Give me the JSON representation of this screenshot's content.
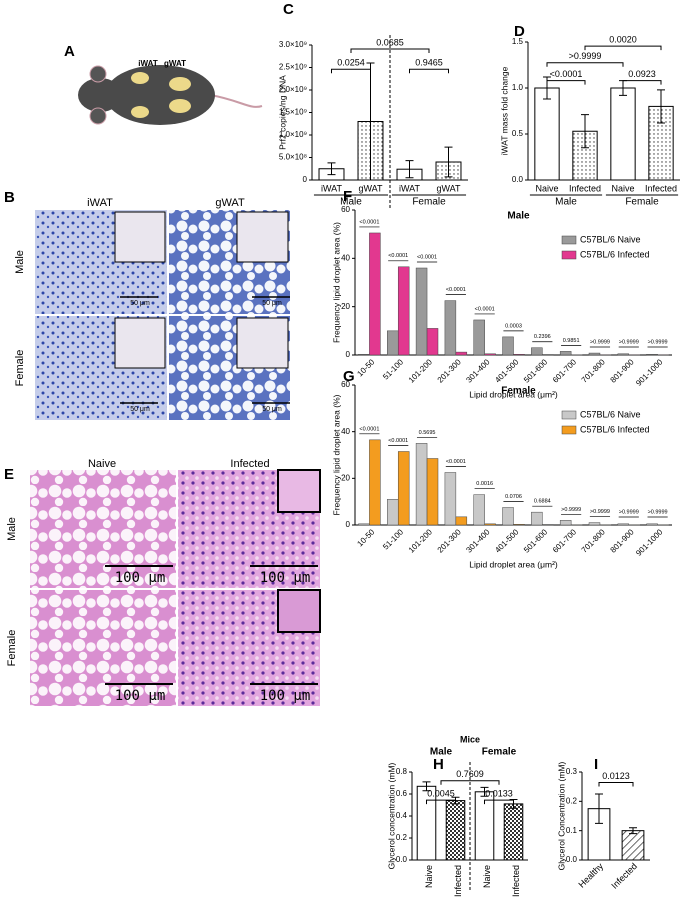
{
  "figure": {
    "panel_letters": [
      "A",
      "B",
      "C",
      "D",
      "E",
      "F",
      "G",
      "H",
      "I"
    ],
    "mouse_labels": [
      "iWAT",
      "gWAT"
    ],
    "b": {
      "columns": [
        "iWAT",
        "gWAT"
      ],
      "rows": [
        "Male",
        "Female"
      ],
      "scale_bars": [
        "50 μm",
        "50 μm",
        "50 μm",
        "50 μm"
      ]
    },
    "e": {
      "columns": [
        "Naive",
        "Infected"
      ],
      "rows": [
        "Male",
        "Female"
      ],
      "scale_bars": [
        "100 μm",
        "100 μm",
        "100 μm",
        "100 μm"
      ]
    }
  },
  "chart_data": [
    {
      "type": "bar",
      "ylabel": "Prf2 copies/ng DNA",
      "categories": [
        "iWAT",
        "gWAT",
        "iWAT",
        "gWAT"
      ],
      "groups": [
        "Male",
        "Female"
      ],
      "values": [
        250000000,
        1300000000,
        240000000,
        400000000
      ],
      "errors": [
        130000000,
        1300000000,
        190000000,
        330000000
      ],
      "patterns": [
        "none",
        "dots",
        "none",
        "dots"
      ],
      "ylim": [
        0,
        3000000000
      ],
      "yticks": [
        0,
        {
          "value": 500000000,
          "label": "5.0×10⁸"
        },
        {
          "value": 1000000000,
          "label": "1.0×10⁹"
        },
        {
          "value": 1500000000,
          "label": "1.5×10⁹"
        },
        {
          "value": 2000000000,
          "label": "2.0×10⁹"
        },
        {
          "value": 2500000000,
          "label": "2.5×10⁹"
        },
        {
          "value": 3000000000,
          "label": "3.0×10⁹"
        }
      ],
      "comparisons": [
        "0.0254",
        "0.9465",
        "0.0685"
      ],
      "divider": true
    },
    {
      "type": "bar",
      "ylabel": "iWAT mass fold change",
      "categories": [
        "Naive",
        "Infected",
        "Naive",
        "Infected"
      ],
      "groups": [
        "Male",
        "Female"
      ],
      "values": [
        1.0,
        0.53,
        1.0,
        0.8
      ],
      "errors": [
        0.12,
        0.18,
        0.08,
        0.18
      ],
      "patterns": [
        "none",
        "dots",
        "none",
        "dots"
      ],
      "ylim": [
        0,
        1.5
      ],
      "yticks": [
        {
          "value": 0,
          "label": "0.0"
        },
        0.5,
        {
          "value": 1,
          "label": "1.0"
        },
        1.5
      ],
      "comparisons": [
        "<0.0001",
        "0.0923",
        ">0.9999",
        "0.0020"
      ],
      "divider": false
    },
    {
      "type": "grouped_bar",
      "title": "Male",
      "ylabel": "Frequency lipid droplet area (%)",
      "xlabel": "Lipid droplet area (μm²)",
      "categories": [
        "10-50",
        "51-100",
        "101-200",
        "201-300",
        "301-400",
        "401-500",
        "501-600",
        "601-700",
        "701-800",
        "801-900",
        "901-1000"
      ],
      "series": [
        {
          "name": "C57BL/6 Naive",
          "color": "#9a9a9a",
          "values": [
            0.3,
            10,
            36,
            22.5,
            14.5,
            7.5,
            3,
            1.5,
            0.8,
            0.5,
            0.3
          ]
        },
        {
          "name": "C57BL/6 Infected",
          "color": "#e2388f",
          "values": [
            50.5,
            36.5,
            11,
            1.2,
            0.5,
            0.3,
            0.2,
            0.1,
            0.05,
            0.05,
            0.05
          ]
        }
      ],
      "p_values": [
        "<0.0001",
        "<0.0001",
        "<0.0001",
        "<0.0001",
        "<0.0001",
        "0.0003",
        "0.2396",
        "0.9851",
        ">0.9999",
        ">0.9999",
        ">0.9999"
      ],
      "ylim": [
        0,
        60
      ],
      "yticks": [
        0,
        20,
        40,
        60
      ]
    },
    {
      "type": "grouped_bar",
      "title": "Female",
      "ylabel": "Frequency lipid droplet area (%)",
      "xlabel": "Lipid droplet area (μm²)",
      "categories": [
        "10-50",
        "51-100",
        "101-200",
        "201-300",
        "301-400",
        "401-500",
        "501-600",
        "601-700",
        "701-800",
        "801-900",
        "901-1000"
      ],
      "series": [
        {
          "name": "C57BL/6 Naive",
          "color": "#c8c8c8",
          "values": [
            0.5,
            11,
            35,
            22.5,
            13,
            7.5,
            5.5,
            2,
            1,
            0.5,
            0.5
          ]
        },
        {
          "name": "C57BL/6 Infected",
          "color": "#f39c1f",
          "values": [
            36.5,
            31.5,
            28.5,
            3.5,
            0.5,
            0.3,
            0.2,
            0.1,
            0.1,
            0.1,
            0.1
          ]
        }
      ],
      "p_values": [
        "<0.0001",
        "<0.0001",
        "0.5695",
        "<0.0001",
        "0.0016",
        "0.0706",
        "0.6884",
        ">0.9999",
        ">0.9999",
        ">0.9999",
        ">0.9999"
      ],
      "ylim": [
        0,
        60
      ],
      "yticks": [
        0,
        20,
        40,
        60
      ]
    },
    {
      "type": "bar",
      "title": "Mice",
      "ylabel": "Glycerol concentration (mM)",
      "categories": [
        "Naive",
        "Infected",
        "Naive",
        "Infected"
      ],
      "groups": [
        "Male",
        "Female"
      ],
      "values": [
        0.67,
        0.54,
        0.62,
        0.51
      ],
      "errors": [
        0.04,
        0.03,
        0.04,
        0.04
      ],
      "patterns": [
        "none",
        "checker",
        "none",
        "checker"
      ],
      "ylim": [
        0,
        0.8
      ],
      "yticks": [
        {
          "value": 0,
          "label": "0.0"
        },
        0.2,
        0.4,
        0.6,
        0.8
      ],
      "comparisons": [
        "0.0045",
        "0.0133",
        "0.7609"
      ],
      "divider": true
    },
    {
      "type": "bar",
      "ylabel": "Glycerol Concentration (mM)",
      "categories": [
        "Healthy",
        "Infected"
      ],
      "values": [
        0.175,
        0.1
      ],
      "errors": [
        0.05,
        0.01
      ],
      "patterns": [
        "none",
        "hatch"
      ],
      "ylim": [
        0,
        0.3
      ],
      "yticks": [
        {
          "value": 0,
          "label": "0.0"
        },
        0.1,
        0.2,
        0.3
      ],
      "comparisons": [
        "0.0123"
      ],
      "divider": false
    }
  ]
}
